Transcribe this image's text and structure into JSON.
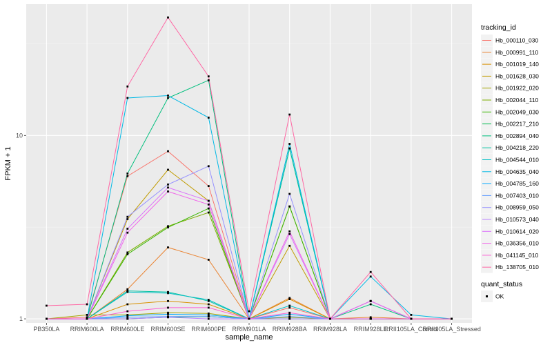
{
  "chart_data": {
    "type": "line",
    "xlabel": "sample_name",
    "ylabel": "FPKM + 1",
    "y_scale": "log10",
    "ylim": [
      0.95,
      52
    ],
    "y_ticks": [
      1,
      10
    ],
    "y_tick_labels": [
      "1",
      "10"
    ],
    "grid": true,
    "legend_position": "right",
    "legend_title": "tracking_id",
    "point_legend_title": "quant_status",
    "point_legend_entries": [
      "OK"
    ],
    "categories": [
      "PB350LA",
      "RRIM600LA",
      "RRIM600LE",
      "RRIM600SE",
      "RRIM600PE",
      "RRIM901LA",
      "RRIM928BA",
      "RRIM928LA",
      "RRIM928LE",
      "RRII105LA_Control",
      "RRII105LA_Stressed"
    ],
    "series": [
      {
        "name": "Hb_000110_030",
        "color": "#F8766D",
        "values": [
          1.0,
          1.02,
          6.0,
          8.2,
          5.3,
          1.0,
          1.15,
          1.0,
          1.0,
          1.0,
          1.0
        ]
      },
      {
        "name": "Hb_000991_110",
        "color": "#EA8331",
        "values": [
          1.0,
          1.0,
          1.45,
          2.45,
          2.1,
          1.0,
          1.3,
          1.0,
          1.02,
          1.0,
          1.0
        ]
      },
      {
        "name": "Hb_001019_140",
        "color": "#D89000",
        "values": [
          1.0,
          1.0,
          1.2,
          1.25,
          1.2,
          1.0,
          1.28,
          1.0,
          1.0,
          1.0,
          1.0
        ]
      },
      {
        "name": "Hb_001628_030",
        "color": "#C09B00",
        "values": [
          1.0,
          1.0,
          3.5,
          6.5,
          4.4,
          1.0,
          2.5,
          1.0,
          1.0,
          1.0,
          1.0
        ]
      },
      {
        "name": "Hb_001922_020",
        "color": "#A3A500",
        "values": [
          1.0,
          1.05,
          1.05,
          1.08,
          1.07,
          1.0,
          1.02,
          1.0,
          1.0,
          1.0,
          1.0
        ]
      },
      {
        "name": "Hb_002044_110",
        "color": "#7CAE00",
        "values": [
          1.0,
          1.0,
          2.3,
          3.2,
          3.8,
          1.0,
          4.1,
          1.0,
          1.0,
          1.0,
          1.0
        ]
      },
      {
        "name": "Hb_002049_030",
        "color": "#39B600",
        "values": [
          1.0,
          1.0,
          2.25,
          3.15,
          4.0,
          1.0,
          4.1,
          1.0,
          1.0,
          1.0,
          1.0
        ]
      },
      {
        "name": "Hb_002217_210",
        "color": "#00BB4E",
        "values": [
          1.0,
          1.0,
          1.0,
          1.02,
          1.03,
          1.0,
          1.0,
          1.0,
          1.0,
          1.0,
          1.0
        ]
      },
      {
        "name": "Hb_002894_040",
        "color": "#00BF7D",
        "values": [
          1.0,
          1.0,
          6.2,
          16.0,
          20.0,
          1.0,
          8.5,
          1.0,
          1.2,
          1.0,
          1.0
        ]
      },
      {
        "name": "Hb_004218_220",
        "color": "#00C1A3",
        "values": [
          1.0,
          1.0,
          1.42,
          1.4,
          1.25,
          1.0,
          8.5,
          1.0,
          1.25,
          1.0,
          1.0
        ]
      },
      {
        "name": "Hb_004544_010",
        "color": "#00BFC4",
        "values": [
          1.0,
          1.0,
          1.4,
          1.38,
          1.27,
          1.0,
          1.18,
          1.0,
          1.0,
          1.0,
          1.0
        ]
      },
      {
        "name": "Hb_004635_040",
        "color": "#00B8E5",
        "values": [
          1.0,
          1.0,
          16.0,
          16.5,
          12.5,
          1.0,
          9.0,
          1.0,
          1.7,
          1.05,
          1.0
        ]
      },
      {
        "name": "Hb_004785_160",
        "color": "#00A9FF",
        "values": [
          1.0,
          1.0,
          1.04,
          1.06,
          1.05,
          1.0,
          1.06,
          1.0,
          1.0,
          1.0,
          1.0
        ]
      },
      {
        "name": "Hb_007403_010",
        "color": "#619CFF",
        "values": [
          1.0,
          1.0,
          1.02,
          1.03,
          1.03,
          1.0,
          1.03,
          1.0,
          1.0,
          1.0,
          1.0
        ]
      },
      {
        "name": "Hb_008959_050",
        "color": "#9590FF",
        "values": [
          1.0,
          1.0,
          3.6,
          5.4,
          6.8,
          1.0,
          4.8,
          1.0,
          1.25,
          1.0,
          1.0
        ]
      },
      {
        "name": "Hb_010573_040",
        "color": "#B983FF",
        "values": [
          1.0,
          1.0,
          1.0,
          1.02,
          1.0,
          1.0,
          1.0,
          1.0,
          1.0,
          1.0,
          1.0
        ]
      },
      {
        "name": "Hb_010614_020",
        "color": "#DB72FB",
        "values": [
          1.0,
          1.0,
          3.1,
          5.2,
          4.4,
          1.0,
          2.9,
          1.0,
          1.25,
          1.0,
          1.0
        ]
      },
      {
        "name": "Hb_036356_010",
        "color": "#F066EA",
        "values": [
          1.0,
          1.0,
          2.95,
          4.95,
          4.2,
          1.0,
          3.0,
          1.0,
          1.25,
          1.0,
          1.0
        ]
      },
      {
        "name": "Hb_041145_010",
        "color": "#FC61D5",
        "values": [
          1.0,
          1.0,
          1.1,
          1.15,
          1.15,
          1.0,
          1.08,
          1.0,
          1.0,
          1.0,
          1.0
        ]
      },
      {
        "name": "Hb_138705_010",
        "color": "#FF67A4",
        "values": [
          1.18,
          1.2,
          18.5,
          44.0,
          21.0,
          1.1,
          13.0,
          1.0,
          1.8,
          1.0,
          1.0
        ]
      }
    ]
  }
}
